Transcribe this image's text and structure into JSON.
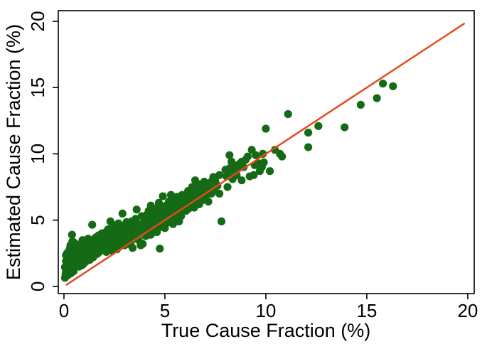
{
  "figure": {
    "background": "#ffffff",
    "frame_color": "#000000",
    "text_color": "#000000"
  },
  "chart_data": {
    "type": "scatter",
    "title": "",
    "xlabel": "True Cause Fraction (%)",
    "ylabel": "Estimated Cause Fraction (%)",
    "xlim": [
      -0.28,
      20.32
    ],
    "ylim": [
      -0.54,
      20.8
    ],
    "xticks": [
      0,
      5,
      10,
      15,
      20
    ],
    "yticks": [
      0,
      5,
      10,
      15,
      20
    ],
    "grid": false,
    "legend": "none",
    "marker_color": "#156a15",
    "line_color": "#e8481c",
    "identity_line": {
      "x0": 0.1,
      "y0": 0.1,
      "x1": 19.85,
      "y1": 19.85
    },
    "points": [
      [
        0.05,
        0.65
      ],
      [
        0.08,
        0.95
      ],
      [
        0.1,
        1.25
      ],
      [
        0.12,
        1.6
      ],
      [
        0.15,
        1.05
      ],
      [
        0.15,
        2.1
      ],
      [
        0.18,
        1.4
      ],
      [
        0.2,
        0.85
      ],
      [
        0.2,
        1.75
      ],
      [
        0.22,
        2.45
      ],
      [
        0.25,
        1.2
      ],
      [
        0.25,
        1.95
      ],
      [
        0.28,
        2.8
      ],
      [
        0.3,
        1.5
      ],
      [
        0.3,
        2.2
      ],
      [
        0.32,
        3.1
      ],
      [
        0.35,
        1.0
      ],
      [
        0.35,
        1.8
      ],
      [
        0.38,
        2.55
      ],
      [
        0.4,
        1.35
      ],
      [
        0.4,
        2.05
      ],
      [
        0.42,
        3.4
      ],
      [
        0.45,
        1.65
      ],
      [
        0.45,
        2.35
      ],
      [
        0.48,
        1.15
      ],
      [
        0.5,
        1.9
      ],
      [
        0.5,
        2.65
      ],
      [
        0.52,
        3.0
      ],
      [
        0.55,
        1.45
      ],
      [
        0.55,
        2.15
      ],
      [
        0.58,
        2.9
      ],
      [
        0.6,
        1.7
      ],
      [
        0.6,
        2.5
      ],
      [
        0.1,
        1.9
      ],
      [
        0.3,
        2.6
      ],
      [
        0.2,
        2.2
      ],
      [
        0.4,
        2.9
      ],
      [
        0.5,
        3.3
      ],
      [
        0.4,
        3.9
      ],
      [
        0.15,
        2.5
      ],
      [
        0.35,
        2.3
      ],
      [
        0.55,
        2.45
      ],
      [
        0.25,
        1.55
      ],
      [
        0.05,
        1.45
      ],
      [
        0.6,
        2.05
      ],
      [
        0.3,
        1.85
      ],
      [
        0.5,
        1.55
      ],
      [
        0.2,
        1.3
      ],
      [
        0.4,
        1.75
      ],
      [
        0.6,
        3.15
      ],
      [
        0.1,
        2.35
      ],
      [
        0.45,
        2.75
      ],
      [
        0.65,
        1.55
      ],
      [
        0.68,
        2.3
      ],
      [
        0.7,
        1.8
      ],
      [
        0.72,
        2.9
      ],
      [
        0.75,
        1.5
      ],
      [
        0.78,
        2.1
      ],
      [
        0.8,
        1.65
      ],
      [
        0.8,
        2.55
      ],
      [
        0.82,
        3.2
      ],
      [
        0.85,
        1.9
      ],
      [
        0.88,
        2.75
      ],
      [
        0.9,
        1.6
      ],
      [
        0.9,
        2.3
      ],
      [
        0.92,
        3.5
      ],
      [
        0.95,
        2.0
      ],
      [
        0.98,
        2.9
      ],
      [
        1.0,
        1.75
      ],
      [
        1.0,
        2.45
      ],
      [
        1.02,
        3.15
      ],
      [
        1.05,
        2.2
      ],
      [
        1.08,
        2.7
      ],
      [
        1.1,
        1.9
      ],
      [
        1.1,
        3.4
      ],
      [
        1.12,
        2.5
      ],
      [
        1.15,
        3.0
      ],
      [
        1.18,
        2.15
      ],
      [
        1.2,
        2.8
      ],
      [
        1.2,
        3.6
      ],
      [
        1.22,
        2.4
      ],
      [
        1.25,
        3.2
      ],
      [
        1.28,
        2.0
      ],
      [
        1.3,
        2.65
      ],
      [
        1.3,
        3.45
      ],
      [
        1.32,
        2.9
      ],
      [
        1.35,
        2.35
      ],
      [
        1.38,
        3.1
      ],
      [
        1.4,
        2.55
      ],
      [
        1.4,
        4.65
      ],
      [
        1.42,
        3.35
      ],
      [
        1.45,
        2.2
      ],
      [
        1.45,
        2.95
      ],
      [
        1.48,
        3.55
      ],
      [
        1.5,
        2.6
      ],
      [
        1.5,
        3.2
      ],
      [
        1.52,
        2.4
      ],
      [
        1.55,
        2.85
      ],
      [
        1.58,
        3.7
      ],
      [
        1.6,
        2.65
      ],
      [
        1.6,
        3.35
      ],
      [
        1.62,
        3.0
      ],
      [
        1.65,
        2.45
      ],
      [
        1.68,
        3.5
      ],
      [
        1.7,
        2.8
      ],
      [
        1.7,
        3.15
      ],
      [
        1.72,
        3.85
      ],
      [
        1.75,
        2.6
      ],
      [
        1.78,
        3.3
      ],
      [
        1.8,
        2.95
      ],
      [
        1.8,
        3.6
      ],
      [
        1.85,
        3.1
      ],
      [
        1.88,
        4.0
      ],
      [
        1.9,
        2.75
      ],
      [
        1.9,
        3.4
      ],
      [
        1.95,
        3.05
      ],
      [
        1.98,
        3.75
      ],
      [
        2.0,
        3.3
      ],
      [
        2.02,
        2.85
      ],
      [
        2.05,
        3.5
      ],
      [
        2.08,
        4.1
      ],
      [
        2.1,
        2.6
      ],
      [
        2.1,
        3.2
      ],
      [
        2.12,
        3.85
      ],
      [
        2.15,
        3.0
      ],
      [
        2.18,
        4.3
      ],
      [
        2.2,
        2.75
      ],
      [
        2.2,
        3.45
      ],
      [
        2.22,
        4.0
      ],
      [
        2.25,
        3.15
      ],
      [
        2.28,
        3.7
      ],
      [
        2.3,
        2.9
      ],
      [
        2.3,
        4.9
      ],
      [
        2.32,
        3.35
      ],
      [
        2.35,
        4.15
      ],
      [
        2.38,
        2.7
      ],
      [
        2.4,
        3.55
      ],
      [
        2.4,
        4.45
      ],
      [
        2.42,
        3.05
      ],
      [
        2.45,
        3.8
      ],
      [
        2.48,
        3.3
      ],
      [
        2.5,
        2.95
      ],
      [
        2.5,
        4.2
      ],
      [
        2.52,
        3.6
      ],
      [
        2.55,
        4.6
      ],
      [
        2.58,
        3.1
      ],
      [
        2.6,
        3.9
      ],
      [
        2.6,
        4.35
      ],
      [
        2.62,
        2.8
      ],
      [
        2.65,
        3.45
      ],
      [
        2.68,
        4.05
      ],
      [
        2.7,
        3.25
      ],
      [
        2.7,
        4.75
      ],
      [
        2.72,
        3.7
      ],
      [
        2.75,
        3.0
      ],
      [
        2.78,
        4.3
      ],
      [
        2.8,
        3.5
      ],
      [
        2.8,
        4.0
      ],
      [
        2.85,
        3.2
      ],
      [
        2.88,
        4.55
      ],
      [
        2.9,
        3.75
      ],
      [
        2.9,
        5.5
      ],
      [
        2.95,
        3.4
      ],
      [
        2.98,
        4.2
      ],
      [
        3.0,
        3.1
      ],
      [
        3.0,
        3.9
      ],
      [
        3.05,
        4.5
      ],
      [
        3.1,
        3.55
      ],
      [
        3.1,
        4.85
      ],
      [
        3.15,
        3.3
      ],
      [
        3.2,
        4.1
      ],
      [
        3.2,
        4.65
      ],
      [
        3.25,
        3.7
      ],
      [
        3.3,
        4.35
      ],
      [
        3.3,
        3.15
      ],
      [
        3.35,
        4.9
      ],
      [
        3.4,
        2.9
      ],
      [
        3.4,
        3.95
      ],
      [
        3.45,
        4.5
      ],
      [
        3.5,
        3.6
      ],
      [
        3.5,
        4.15
      ],
      [
        3.55,
        5.1
      ],
      [
        3.6,
        3.85
      ],
      [
        3.6,
        5.8
      ],
      [
        3.65,
        4.4
      ],
      [
        3.7,
        3.5
      ],
      [
        3.7,
        4.7
      ],
      [
        3.75,
        4.05
      ],
      [
        3.8,
        3.1
      ],
      [
        3.8,
        4.5
      ],
      [
        3.85,
        5.3
      ],
      [
        3.9,
        3.2
      ],
      [
        3.9,
        4.25
      ],
      [
        3.95,
        4.8
      ],
      [
        4.0,
        4.45
      ],
      [
        4.02,
        5.0
      ],
      [
        4.05,
        3.8
      ],
      [
        4.1,
        4.65
      ],
      [
        4.1,
        5.4
      ],
      [
        4.15,
        4.2
      ],
      [
        4.2,
        4.9
      ],
      [
        4.2,
        5.7
      ],
      [
        4.25,
        4.5
      ],
      [
        4.3,
        3.9
      ],
      [
        4.3,
        6.1
      ],
      [
        4.35,
        5.15
      ],
      [
        4.4,
        4.7
      ],
      [
        4.4,
        5.5
      ],
      [
        4.45,
        4.3
      ],
      [
        4.5,
        5.0
      ],
      [
        4.5,
        5.85
      ],
      [
        4.55,
        4.6
      ],
      [
        4.6,
        5.3
      ],
      [
        4.6,
        4.1
      ],
      [
        4.65,
        5.6
      ],
      [
        4.7,
        4.85
      ],
      [
        4.7,
        6.3
      ],
      [
        4.75,
        2.85
      ],
      [
        4.75,
        5.2
      ],
      [
        4.8,
        4.5
      ],
      [
        4.8,
        5.9
      ],
      [
        4.85,
        5.45
      ],
      [
        4.9,
        4.75
      ],
      [
        4.9,
        6.8
      ],
      [
        4.95,
        5.1
      ],
      [
        5.0,
        4.4
      ],
      [
        5.0,
        5.65
      ],
      [
        5.05,
        6.1
      ],
      [
        5.1,
        5.3
      ],
      [
        5.1,
        4.8
      ],
      [
        5.15,
        5.95
      ],
      [
        5.2,
        5.5
      ],
      [
        5.2,
        6.4
      ],
      [
        5.25,
        4.95
      ],
      [
        5.3,
        5.75
      ],
      [
        5.3,
        6.9
      ],
      [
        5.35,
        5.25
      ],
      [
        5.4,
        6.15
      ],
      [
        5.4,
        4.7
      ],
      [
        5.45,
        5.6
      ],
      [
        5.5,
        6.5
      ],
      [
        5.5,
        5.05
      ],
      [
        5.55,
        5.9
      ],
      [
        5.6,
        5.4
      ],
      [
        5.6,
        6.75
      ],
      [
        5.65,
        6.2
      ],
      [
        5.7,
        5.65
      ],
      [
        5.7,
        4.9
      ],
      [
        5.75,
        6.45
      ],
      [
        5.8,
        5.3
      ],
      [
        5.8,
        6.05
      ],
      [
        5.85,
        6.9
      ],
      [
        5.9,
        5.8
      ],
      [
        5.95,
        6.35
      ],
      [
        6.0,
        6.6
      ],
      [
        6.05,
        5.7
      ],
      [
        6.1,
        6.9
      ],
      [
        6.1,
        6.2
      ],
      [
        6.15,
        7.2
      ],
      [
        6.2,
        5.9
      ],
      [
        6.2,
        6.5
      ],
      [
        6.3,
        7.0
      ],
      [
        6.3,
        6.15
      ],
      [
        6.35,
        7.5
      ],
      [
        6.4,
        6.7
      ],
      [
        6.45,
        5.95
      ],
      [
        6.5,
        7.1
      ],
      [
        6.5,
        8.0
      ],
      [
        6.55,
        6.4
      ],
      [
        6.6,
        7.4
      ],
      [
        6.65,
        6.85
      ],
      [
        6.7,
        6.2
      ],
      [
        6.7,
        7.7
      ],
      [
        6.8,
        7.0
      ],
      [
        6.85,
        6.5
      ],
      [
        6.9,
        7.35
      ],
      [
        6.95,
        7.9
      ],
      [
        7.0,
        6.75
      ],
      [
        7.0,
        7.8
      ],
      [
        7.1,
        7.15
      ],
      [
        7.15,
        6.4
      ],
      [
        7.2,
        7.55
      ],
      [
        7.3,
        7.9
      ],
      [
        7.3,
        7.0
      ],
      [
        7.4,
        8.25
      ],
      [
        7.45,
        7.3
      ],
      [
        7.5,
        8.2
      ],
      [
        7.5,
        7.9
      ],
      [
        7.6,
        7.6
      ],
      [
        7.7,
        8.4
      ],
      [
        7.7,
        7.0
      ],
      [
        7.8,
        4.9
      ],
      [
        8.0,
        8.8
      ],
      [
        8.05,
        8.3
      ],
      [
        8.1,
        7.5
      ],
      [
        8.2,
        8.9
      ],
      [
        8.2,
        9.9
      ],
      [
        8.25,
        8.55
      ],
      [
        8.3,
        9.4
      ],
      [
        8.35,
        8.1
      ],
      [
        8.4,
        8.7
      ],
      [
        8.5,
        9.1
      ],
      [
        8.55,
        8.4
      ],
      [
        8.6,
        8.85
      ],
      [
        8.7,
        9.25
      ],
      [
        8.8,
        9.4
      ],
      [
        8.8,
        8.0
      ],
      [
        8.9,
        9.0
      ],
      [
        9.0,
        9.55
      ],
      [
        9.1,
        9.8
      ],
      [
        9.2,
        8.3
      ],
      [
        9.3,
        10.3
      ],
      [
        9.4,
        8.4
      ],
      [
        9.45,
        9.15
      ],
      [
        9.5,
        9.9
      ],
      [
        9.6,
        9.3
      ],
      [
        9.7,
        8.7
      ],
      [
        9.8,
        9.0
      ],
      [
        9.85,
        10.0
      ],
      [
        9.9,
        9.35
      ],
      [
        10.0,
        11.9
      ],
      [
        10.2,
        8.7
      ],
      [
        10.45,
        10.3
      ],
      [
        10.7,
        10.0
      ],
      [
        10.8,
        9.8
      ],
      [
        11.1,
        13.0
      ],
      [
        12.1,
        11.6
      ],
      [
        12.1,
        10.5
      ],
      [
        12.6,
        12.1
      ],
      [
        13.9,
        12.0
      ],
      [
        14.7,
        13.7
      ],
      [
        15.5,
        14.2
      ],
      [
        15.8,
        15.3
      ],
      [
        16.3,
        15.1
      ]
    ]
  }
}
